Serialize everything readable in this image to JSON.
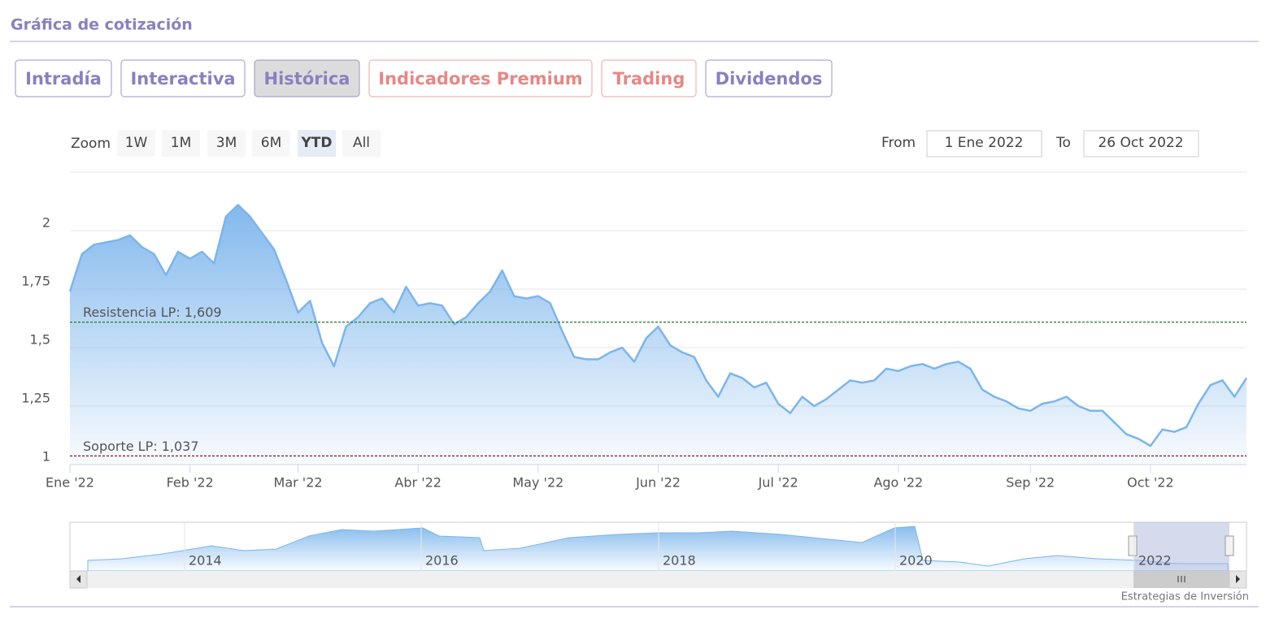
{
  "header": {
    "title": "Gráfica de cotización"
  },
  "tabs": [
    "Intradía",
    "Interactiva",
    "Histórica",
    "Indicadores Premium",
    "Trading",
    "Dividendos"
  ],
  "range_selector": {
    "zoom_label": "Zoom",
    "buttons": [
      "1W",
      "1M",
      "3M",
      "6M",
      "YTD",
      "All"
    ],
    "from_label": "From",
    "from_value": "1 Ene 2022",
    "to_label": "To",
    "to_value": "26 Oct 2022"
  },
  "chart_data": {
    "type": "line",
    "color": "#7cb5ec",
    "categories": [
      "Ene '22",
      null,
      null,
      null,
      null,
      null,
      null,
      null,
      null,
      null,
      "Feb '22",
      null,
      null,
      null,
      null,
      null,
      null,
      null,
      null,
      "Mar '22",
      null,
      null,
      null,
      null,
      null,
      null,
      null,
      null,
      null,
      "Abr '22",
      null,
      null,
      null,
      null,
      null,
      null,
      null,
      null,
      null,
      "May '22",
      null,
      null,
      null,
      null,
      null,
      null,
      null,
      null,
      null,
      "Jun '22",
      null,
      null,
      null,
      null,
      null,
      null,
      null,
      null,
      null,
      "Jul '22",
      null,
      null,
      null,
      null,
      null,
      null,
      null,
      null,
      null,
      "Ago '22",
      null,
      null,
      null,
      null,
      null,
      null,
      null,
      null,
      null,
      null,
      "Sep '22",
      null,
      null,
      null,
      null,
      null,
      null,
      null,
      null,
      null,
      "Oct '22",
      null,
      null,
      null,
      null,
      null,
      null,
      null,
      null
    ],
    "values": [
      1.74,
      1.9,
      1.94,
      1.95,
      1.96,
      1.98,
      1.93,
      1.9,
      1.81,
      1.91,
      1.88,
      1.91,
      1.86,
      2.06,
      2.11,
      2.06,
      1.99,
      1.92,
      1.79,
      1.65,
      1.7,
      1.52,
      1.42,
      1.59,
      1.63,
      1.69,
      1.71,
      1.65,
      1.76,
      1.68,
      1.69,
      1.68,
      1.6,
      1.63,
      1.69,
      1.74,
      1.83,
      1.72,
      1.71,
      1.72,
      1.69,
      1.57,
      1.46,
      1.45,
      1.45,
      1.48,
      1.5,
      1.44,
      1.54,
      1.59,
      1.51,
      1.48,
      1.46,
      1.36,
      1.29,
      1.39,
      1.37,
      1.33,
      1.35,
      1.26,
      1.22,
      1.29,
      1.25,
      1.28,
      1.32,
      1.36,
      1.35,
      1.36,
      1.41,
      1.4,
      1.42,
      1.43,
      1.41,
      1.43,
      1.44,
      1.41,
      1.32,
      1.29,
      1.27,
      1.24,
      1.23,
      1.26,
      1.27,
      1.29,
      1.25,
      1.23,
      1.23,
      1.18,
      1.13,
      1.11,
      1.08,
      1.15,
      1.14,
      1.16,
      1.26,
      1.34,
      1.36,
      1.29,
      1.37
    ],
    "ylim": [
      1,
      2.25
    ],
    "yticks": [
      1,
      {
        "value": 1.25,
        "label": "1,25"
      },
      {
        "value": 1.5,
        "label": "1,5"
      },
      {
        "value": 1.75,
        "label": "1,75"
      },
      2
    ],
    "grid": true,
    "annotations": [
      {
        "label": "Resistencia LP: 1,609",
        "value": 1.609,
        "color": "#1e7a1e"
      },
      {
        "label": "Soporte LP: 1,037",
        "value": 1.037,
        "color": "#7a1e1e"
      }
    ]
  },
  "navigator": {
    "labels": [
      "2014",
      "2016",
      "2018",
      "2020",
      "2022"
    ]
  },
  "credits": "Estrategias de Inversión"
}
